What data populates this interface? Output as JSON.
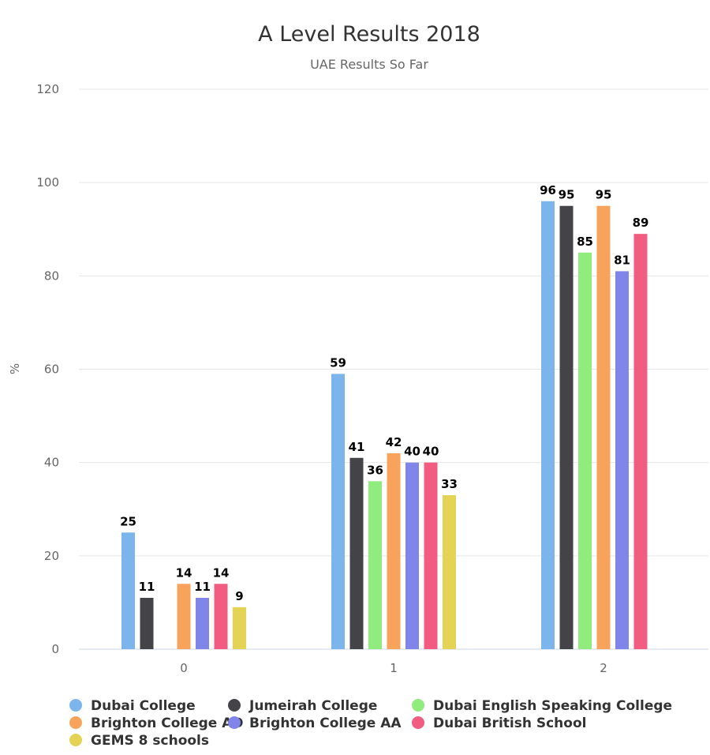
{
  "chart_data": {
    "type": "bar",
    "title": "A Level Results 2018",
    "subtitle": "UAE Results So Far",
    "xlabel": "",
    "ylabel": "%",
    "categories": [
      "0",
      "1",
      "2"
    ],
    "ylim": [
      0,
      120
    ],
    "yticks": [
      0,
      20,
      40,
      60,
      80,
      100,
      120
    ],
    "grid": true,
    "legend_position": "bottom",
    "series": [
      {
        "name": "Dubai College",
        "color": "#7cb5ec",
        "values": [
          25,
          59,
          96
        ]
      },
      {
        "name": "Jumeirah College",
        "color": "#434348",
        "values": [
          11,
          41,
          95
        ]
      },
      {
        "name": "Dubai English Speaking College",
        "color": "#90ed7d",
        "values": [
          null,
          36,
          85
        ]
      },
      {
        "name": "Brighton College AD",
        "color": "#f7a35c",
        "values": [
          14,
          42,
          95
        ]
      },
      {
        "name": "Brighton College AA",
        "color": "#8085e9",
        "values": [
          11,
          40,
          81
        ]
      },
      {
        "name": "Dubai British School",
        "color": "#f15c80",
        "values": [
          14,
          40,
          89
        ]
      },
      {
        "name": "GEMS 8 schools",
        "color": "#e4d354",
        "values": [
          9,
          33,
          null
        ]
      }
    ]
  }
}
